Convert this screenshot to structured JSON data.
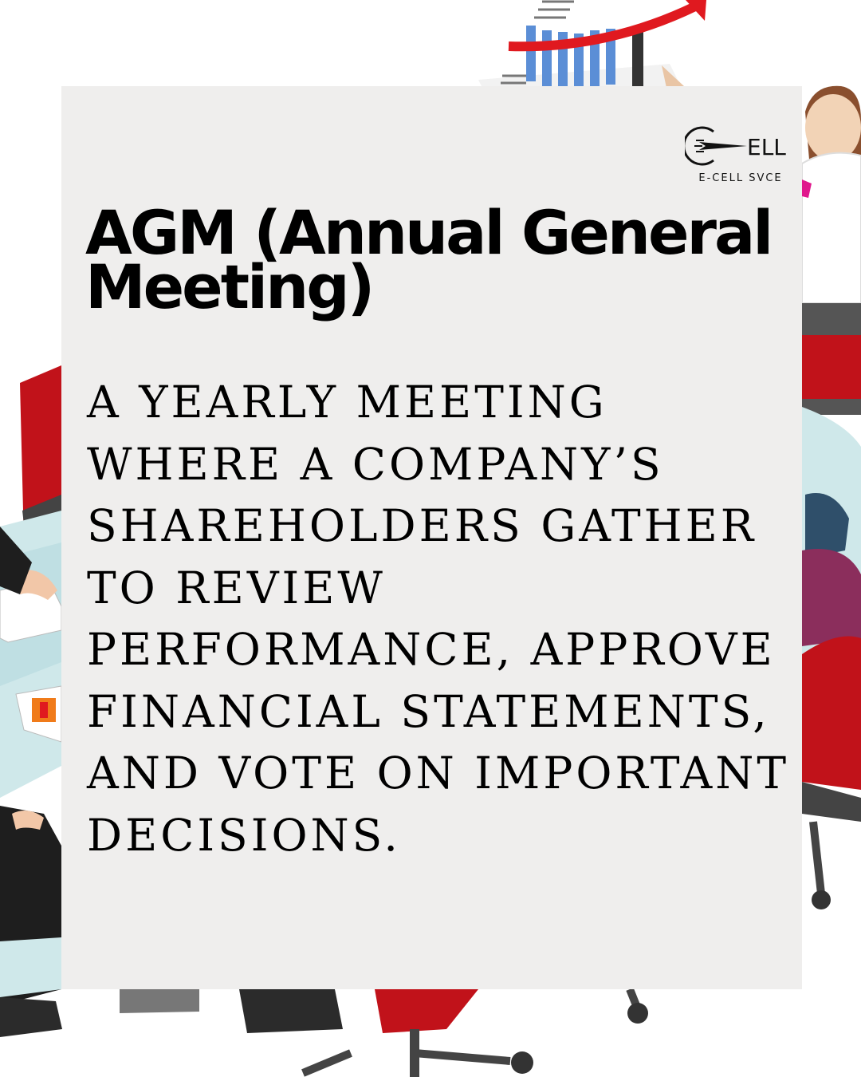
{
  "brand": {
    "logo_text": "E-CELL SVCE",
    "logo_mark_text": "ELL",
    "logo_icon": "paper-plane-icon"
  },
  "title": "AGM (Annual General Meeting)",
  "definition": "A yearly meeting where a company’s shareholders gather to review performance, approve financial statements, and vote on important decisions.",
  "colors": {
    "card_background": "#efeeed",
    "accent_red": "#d7191f",
    "chart_blue": "#5b8ed6",
    "table_teal": "#cfe8ea"
  }
}
